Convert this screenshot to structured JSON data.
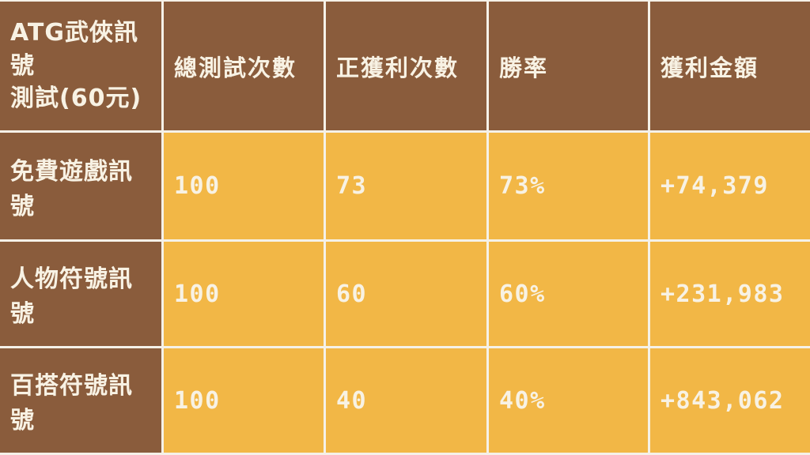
{
  "chart_data": {
    "type": "table",
    "title": "ATG武俠訊號測試(60元)",
    "corner_header": {
      "full": "ATG武俠訊號測試(60元)",
      "line1": "ATG武俠訊號",
      "line2": "測試(60元)"
    },
    "columns": [
      "總測試次數",
      "正獲利次數",
      "勝率",
      "獲利金額"
    ],
    "rows": [
      {
        "label": "免費遊戲訊號",
        "values": [
          "100",
          "73",
          "73%",
          "+74,379"
        ]
      },
      {
        "label": "人物符號訊號",
        "values": [
          "100",
          "60",
          "60%",
          "+231,983"
        ]
      },
      {
        "label": "百搭符號訊號",
        "values": [
          "100",
          "40",
          "40%",
          "+843,062"
        ]
      }
    ],
    "layout_hints": {
      "header_row_background": "brown",
      "label_column_background": "brown",
      "value_cells_background": "yellow",
      "grid": "white gridlines between all cells"
    }
  },
  "colors": {
    "header_brown": "#8a5c3c",
    "cell_yellow": "#f2b746",
    "grid_line": "#f5f1e8",
    "text_cream": "#f8f2e4"
  }
}
